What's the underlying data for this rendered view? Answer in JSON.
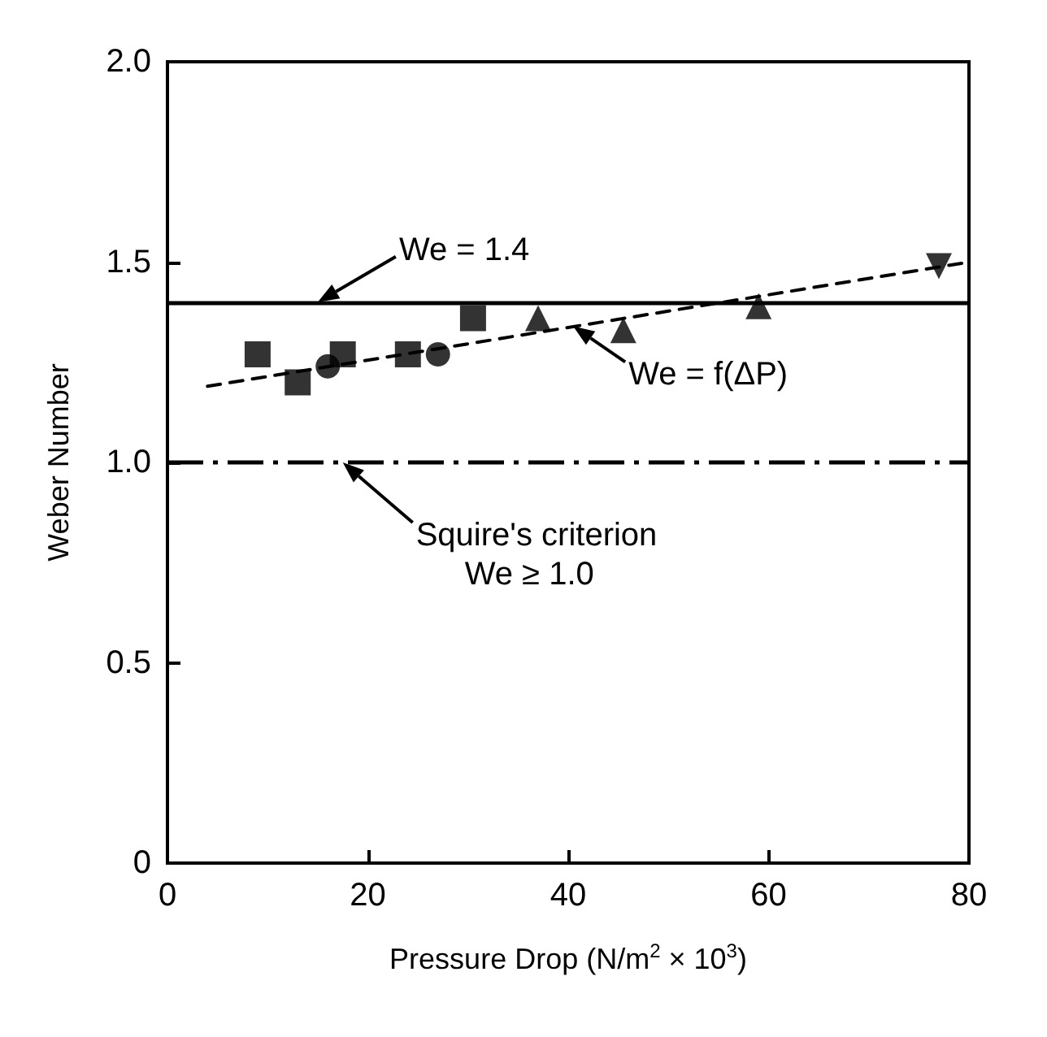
{
  "chart_data": {
    "type": "scatter",
    "xlabel": "Pressure Drop (N/m$^{2}$ × 10$^{3}$)",
    "ylabel": "Weber Number",
    "xlim": [
      0,
      80
    ],
    "xticks": [
      0,
      20,
      40,
      60,
      80
    ],
    "ylim": [
      0,
      2.0
    ],
    "yticks": [
      0,
      0.5,
      {
        "value": 1.0,
        "label": "1.0"
      },
      1.5,
      {
        "value": 2.0,
        "label": "2.0"
      }
    ],
    "grid": false,
    "series": [
      {
        "color": "#000000",
        "marker": "square",
        "x": [
          9,
          13,
          17.5,
          24,
          30.5
        ],
        "values": [
          1.27,
          1.2,
          1.27,
          1.27,
          1.36
        ]
      },
      {
        "color": "#000000",
        "marker": "circle",
        "x": [
          16,
          27
        ],
        "values": [
          1.24,
          1.27
        ]
      },
      {
        "color": "#000000",
        "marker": "triangle",
        "x": [
          37,
          45.5,
          59
        ],
        "values": [
          1.36,
          1.33,
          1.39
        ]
      },
      {
        "color": "#000000",
        "marker": "triangle-down",
        "x": [
          77
        ],
        "values": [
          1.49
        ]
      },
      {
        "type": "line",
        "color": "#000000",
        "marker": "none",
        "line_style": "dashed",
        "x": [
          4,
          80
        ],
        "values": [
          1.19,
          1.5
        ]
      }
    ],
    "ref_lines": [
      {
        "axis": "y",
        "value": 1.4,
        "color": "#000000",
        "line_style": "solid"
      },
      {
        "axis": "y",
        "value": 1.0,
        "color": "#000000",
        "line_style": "dashdot"
      }
    ],
    "annotations": [
      {
        "text": "We = 1.4",
        "x": 15,
        "y": 1.4
      },
      {
        "text": "We = f(ΔP)",
        "x": 40.5,
        "y": 1.34
      },
      {
        "text": "Squire's criterion\nWe ≥ 1.0",
        "x": 17.5,
        "y": 1.0
      }
    ]
  }
}
